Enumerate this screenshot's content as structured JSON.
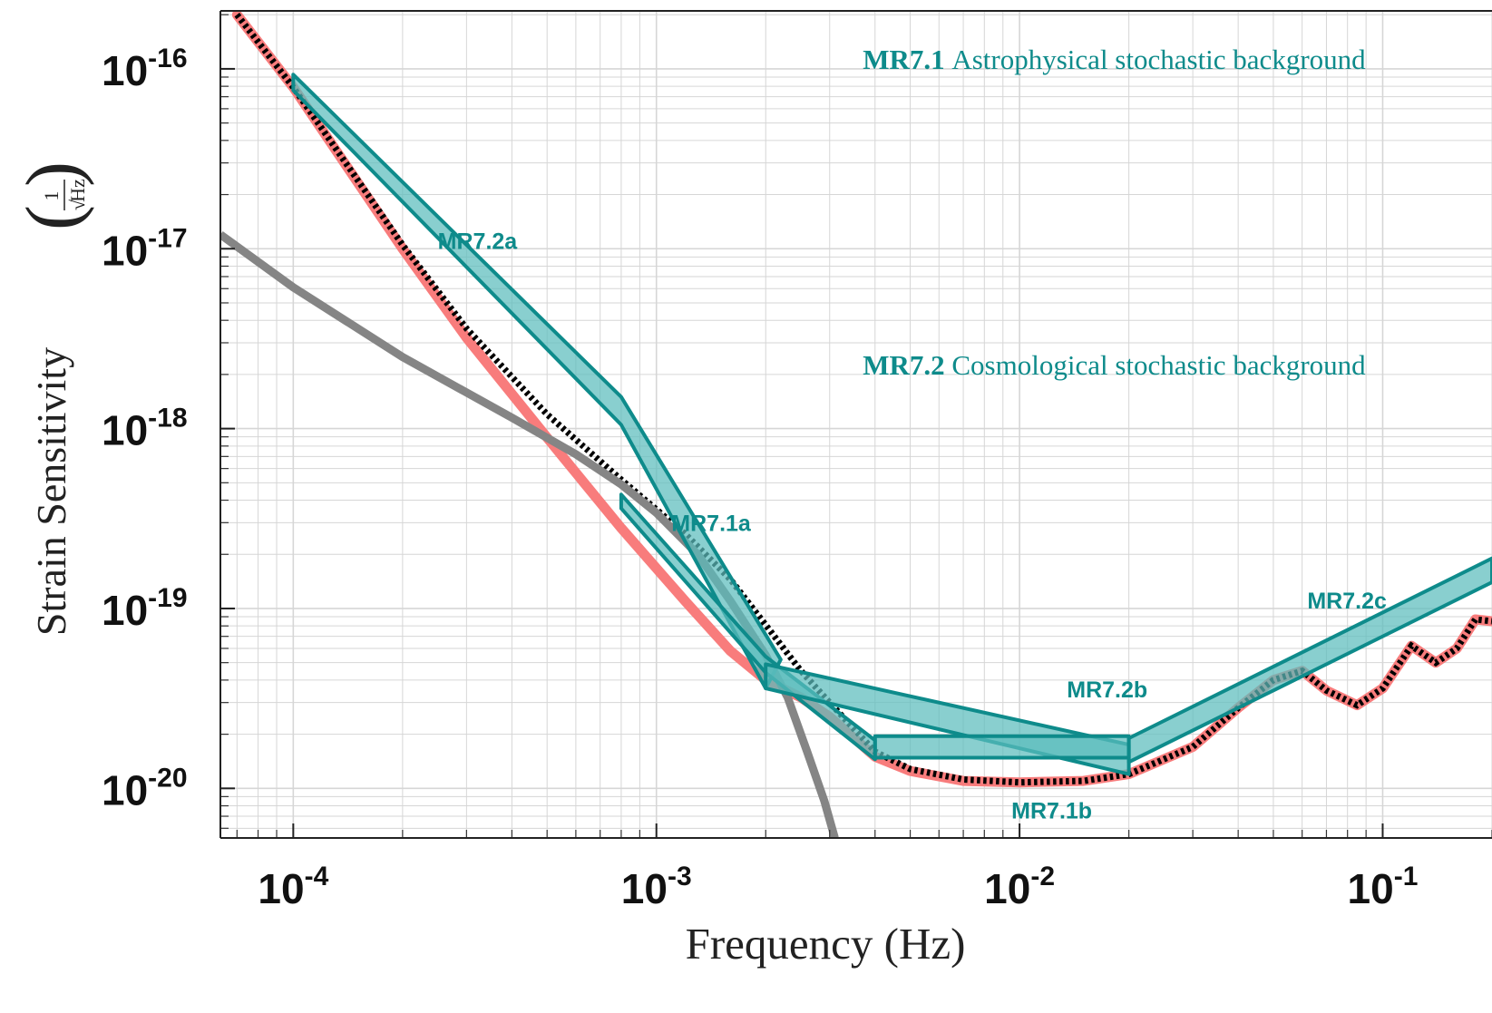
{
  "chart_data": {
    "type": "line",
    "title": "",
    "xlabel": "Frequency (Hz)",
    "ylabel": "Strain Sensitivity",
    "ylabel_unit": {
      "numerator": "1",
      "radical": "√",
      "denominator": "Hz"
    },
    "x_scale": "log",
    "y_scale": "log",
    "xlim": [
      6.3e-05,
      0.2
    ],
    "ylim": [
      5.3e-21,
      2.1e-16
    ],
    "grid": true,
    "x_ticks": [
      {
        "value": 0.0001,
        "base": "10",
        "exp": "-4"
      },
      {
        "value": 0.001,
        "base": "10",
        "exp": "-3"
      },
      {
        "value": 0.01,
        "base": "10",
        "exp": "-2"
      },
      {
        "value": 0.1,
        "base": "10",
        "exp": "-1"
      }
    ],
    "y_ticks": [
      {
        "value": 1e-16,
        "base": "10",
        "exp": "-16"
      },
      {
        "value": 1e-17,
        "base": "10",
        "exp": "-17"
      },
      {
        "value": 1e-18,
        "base": "10",
        "exp": "-18"
      },
      {
        "value": 1e-19,
        "base": "10",
        "exp": "-19"
      },
      {
        "value": 1e-20,
        "base": "10",
        "exp": "-20"
      }
    ],
    "colors": {
      "teal": "#0e8b8b",
      "teal_fill": "#5bbcbc",
      "red": "#f87c7c",
      "black": "#000000",
      "gray": "#858585",
      "grid": "#d6d6d6"
    },
    "series": [
      {
        "style": "red",
        "x": [
          7e-05,
          0.0001,
          0.0002,
          0.0003,
          0.0005,
          0.0008,
          0.0012,
          0.0016,
          0.002,
          0.0025,
          0.003,
          0.004,
          0.005,
          0.007,
          0.01,
          0.015,
          0.02,
          0.03,
          0.04,
          0.05,
          0.06,
          0.07,
          0.085,
          0.1,
          0.12,
          0.14,
          0.16,
          0.18,
          0.2
        ],
        "y": [
          2e-16,
          7.9e-17,
          1e-17,
          3.2e-18,
          8.9e-19,
          2.8e-19,
          1.1e-19,
          5.8e-20,
          4e-20,
          3.2e-20,
          2.5e-20,
          1.5e-20,
          1.25e-20,
          1.1e-20,
          1.08e-20,
          1.1e-20,
          1.2e-20,
          1.7e-20,
          2.8e-20,
          4e-20,
          4.5e-20,
          3.5e-20,
          2.9e-20,
          3.6e-20,
          6.2e-20,
          5e-20,
          6e-20,
          8.7e-20,
          8.5e-20
        ]
      },
      {
        "style": "black-dotted",
        "x": [
          7e-05,
          0.0001,
          0.0002,
          0.0003,
          0.0005,
          0.0008,
          0.0012,
          0.0016,
          0.002,
          0.0025,
          0.003,
          0.004,
          0.005,
          0.007,
          0.01,
          0.015,
          0.02,
          0.03,
          0.04,
          0.05,
          0.06,
          0.07,
          0.085,
          0.1,
          0.12,
          0.14,
          0.16,
          0.18,
          0.2
        ],
        "y": [
          2e-16,
          7.9e-17,
          1.05e-17,
          3.6e-18,
          1.2e-18,
          5.2e-19,
          2.6e-19,
          1.45e-19,
          8.1e-20,
          4.5e-20,
          3e-20,
          1.6e-20,
          1.28e-20,
          1.12e-20,
          1.08e-20,
          1.1e-20,
          1.2e-20,
          1.7e-20,
          2.8e-20,
          4e-20,
          4.5e-20,
          3.5e-20,
          2.9e-20,
          3.6e-20,
          6.2e-20,
          5e-20,
          6e-20,
          8.7e-20,
          8.5e-20
        ]
      },
      {
        "style": "gray",
        "x": [
          6.3e-05,
          0.0001,
          0.0002,
          0.0004,
          0.0006,
          0.0008,
          0.001,
          0.0013,
          0.0016,
          0.002,
          0.0023,
          0.0026,
          0.0029,
          0.0031
        ],
        "y": [
          1.2e-17,
          6.1e-18,
          2.5e-18,
          1.15e-18,
          7.2e-19,
          4.9e-19,
          3.4e-19,
          2e-19,
          1.1e-19,
          5.5e-20,
          3.2e-20,
          1.6e-20,
          8.5e-21,
          5.3e-21
        ]
      }
    ],
    "bands": [
      {
        "name": "MR7.2a",
        "upper": [
          [
            0.0001,
            9.3e-17
          ],
          [
            0.0008,
            1.5e-18
          ],
          [
            0.0022,
            5.2e-20
          ]
        ],
        "lower": [
          [
            0.0001,
            7.6e-17
          ],
          [
            0.0008,
            1.05e-18
          ],
          [
            0.002,
            3.6e-20
          ]
        ]
      },
      {
        "name": "MR7.1a",
        "upper": [
          [
            0.0008,
            4.3e-19
          ],
          [
            0.002,
            5.4e-20
          ],
          [
            0.004,
            1.85e-20
          ]
        ],
        "lower": [
          [
            0.0008,
            3.6e-19
          ],
          [
            0.002,
            4.4e-20
          ],
          [
            0.004,
            1.45e-20
          ]
        ]
      },
      {
        "name": "MR7.2b",
        "upper": [
          [
            0.002,
            4.9e-20
          ],
          [
            0.02,
            1.75e-20
          ]
        ],
        "lower": [
          [
            0.002,
            3.6e-20
          ],
          [
            0.02,
            1.2e-20
          ]
        ]
      },
      {
        "name": "MR7.1b",
        "upper": [
          [
            0.004,
            1.95e-20
          ],
          [
            0.02,
            1.95e-20
          ]
        ],
        "lower": [
          [
            0.004,
            1.48e-20
          ],
          [
            0.02,
            1.48e-20
          ]
        ]
      },
      {
        "name": "MR7.2c",
        "upper": [
          [
            0.02,
            1.9e-20
          ],
          [
            0.2,
            1.9e-19
          ]
        ],
        "lower": [
          [
            0.02,
            1.4e-20
          ],
          [
            0.2,
            1.4e-19
          ]
        ]
      }
    ],
    "band_labels": [
      {
        "text": "MR7.2a",
        "x": 0.00025,
        "y": 1e-17
      },
      {
        "text": "MR7.1a",
        "x": 0.0011,
        "y": 2.7e-19
      },
      {
        "text": "MR7.2b",
        "x": 0.0135,
        "y": 3.2e-20
      },
      {
        "text": "MR7.1b",
        "x": 0.0095,
        "y": 6.8e-21
      },
      {
        "text": "MR7.2c",
        "x": 0.062,
        "y": 1e-19
      }
    ],
    "annotations": [
      {
        "id": "MR7.1",
        "text": "Astrophysical stochastic background",
        "x": 0.0037,
        "y": 1e-16
      },
      {
        "id": "MR7.2",
        "text": "Cosmological stochastic background",
        "x": 0.0037,
        "y": 2e-18
      }
    ]
  }
}
